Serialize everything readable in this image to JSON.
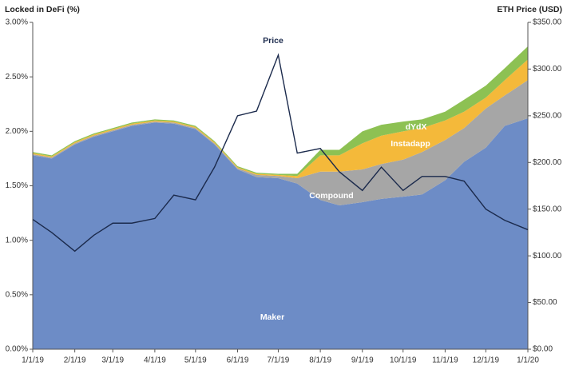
{
  "chart_data": {
    "type": "stacked_area",
    "ylabel": "Locked in DeFi (%)",
    "y2label": "ETH Price (USD)",
    "x": [
      "1/1/19",
      "1/15/19",
      "2/1/19",
      "2/15/19",
      "3/1/19",
      "3/15/19",
      "4/1/19",
      "4/15/19",
      "5/1/19",
      "5/15/19",
      "6/1/19",
      "6/15/19",
      "7/1/19",
      "7/15/19",
      "8/1/19",
      "8/15/19",
      "9/1/19",
      "9/15/19",
      "10/1/19",
      "10/15/19",
      "11/1/19",
      "11/15/19",
      "12/1/19",
      "12/15/19",
      "1/1/20"
    ],
    "xlim": [
      "1/1/19",
      "1/1/20"
    ],
    "xticks": [
      "1/1/19",
      "2/1/19",
      "3/1/19",
      "4/1/19",
      "5/1/19",
      "6/1/19",
      "7/1/19",
      "8/1/19",
      "9/1/19",
      "10/1/19",
      "11/1/19",
      "12/1/19",
      "1/1/20"
    ],
    "ylim": [
      0,
      3
    ],
    "yticks": [
      {
        "value": 0,
        "label": "0.00%"
      },
      {
        "value": 0.5,
        "label": "0.50%"
      },
      {
        "value": 1,
        "label": "1.00%"
      },
      {
        "value": 1.5,
        "label": "1.50%"
      },
      {
        "value": 2,
        "label": "2.00%"
      },
      {
        "value": 2.5,
        "label": "2.50%"
      },
      {
        "value": 3,
        "label": "3.00%"
      }
    ],
    "y2lim": [
      0,
      350
    ],
    "y2ticks": [
      {
        "value": 0,
        "label": "$0.00"
      },
      {
        "value": 50,
        "label": "$50.00"
      },
      {
        "value": 100,
        "label": "$100.00"
      },
      {
        "value": 150,
        "label": "$150.00"
      },
      {
        "value": 200,
        "label": "$200.00"
      },
      {
        "value": 250,
        "label": "$250.00"
      },
      {
        "value": 300,
        "label": "$300.00"
      },
      {
        "value": 350,
        "label": "$350.00"
      }
    ],
    "series": [
      {
        "name": "Maker",
        "color": "#6d8cc6",
        "values": [
          1.78,
          1.75,
          1.88,
          1.95,
          2.0,
          2.05,
          2.08,
          2.07,
          2.02,
          1.88,
          1.65,
          1.58,
          1.57,
          1.52,
          1.37,
          1.32,
          1.35,
          1.38,
          1.4,
          1.42,
          1.55,
          1.72,
          1.85,
          2.05,
          2.12
        ]
      },
      {
        "name": "Compound",
        "color": "#a6a6a6",
        "values": [
          0.01,
          0.01,
          0.01,
          0.01,
          0.01,
          0.01,
          0.01,
          0.01,
          0.01,
          0.01,
          0.01,
          0.02,
          0.02,
          0.05,
          0.26,
          0.31,
          0.3,
          0.32,
          0.34,
          0.39,
          0.37,
          0.31,
          0.36,
          0.28,
          0.35
        ]
      },
      {
        "name": "Instadapp",
        "color": "#f4b93a",
        "values": [
          0.01,
          0.01,
          0.01,
          0.01,
          0.01,
          0.01,
          0.01,
          0.01,
          0.01,
          0.01,
          0.01,
          0.01,
          0.01,
          0.02,
          0.15,
          0.15,
          0.24,
          0.26,
          0.26,
          0.22,
          0.18,
          0.15,
          0.1,
          0.14,
          0.19
        ]
      },
      {
        "name": "dYdX",
        "color": "#8dc153",
        "values": [
          0.01,
          0.01,
          0.01,
          0.01,
          0.01,
          0.01,
          0.01,
          0.01,
          0.01,
          0.01,
          0.01,
          0.01,
          0.01,
          0.02,
          0.05,
          0.05,
          0.11,
          0.1,
          0.09,
          0.08,
          0.08,
          0.11,
          0.11,
          0.11,
          0.12
        ]
      },
      {
        "name": "Price",
        "color": "#1b2a4c",
        "axis": "y2",
        "values": [
          139,
          125,
          105,
          122,
          135,
          135,
          140,
          165,
          160,
          195,
          250,
          255,
          315,
          210,
          215,
          190,
          170,
          195,
          170,
          185,
          185,
          180,
          150,
          138,
          128
        ]
      }
    ]
  }
}
